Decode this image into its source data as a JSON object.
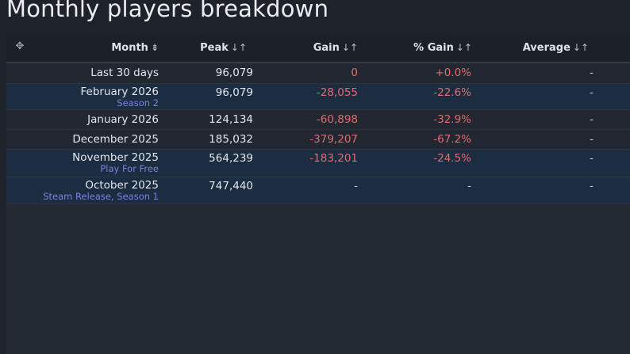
{
  "page": {
    "title": "Monthly players breakdown"
  },
  "table": {
    "headers": {
      "month": "Month",
      "peak": "Peak",
      "gain": "Gain",
      "pct_gain": "% Gain",
      "average": "Average"
    },
    "sort_icons": {
      "month": "⇟",
      "other": "↓↑"
    },
    "rows": [
      {
        "month": "Last 30 days",
        "sub": "",
        "peak": "96,079",
        "gain": "0",
        "pct_gain": "+0.0%",
        "average": "-"
      },
      {
        "month": "February 2026",
        "sub": "Season 2",
        "peak": "96,079",
        "gain": "-28,055",
        "pct_gain": "-22.6%",
        "average": "-"
      },
      {
        "month": "January 2026",
        "sub": "",
        "peak": "124,134",
        "gain": "-60,898",
        "pct_gain": "-32.9%",
        "average": "-"
      },
      {
        "month": "December 2025",
        "sub": "",
        "peak": "185,032",
        "gain": "-379,207",
        "pct_gain": "-67.2%",
        "average": "-"
      },
      {
        "month": "November 2025",
        "sub": "Play For Free",
        "peak": "564,239",
        "gain": "-183,201",
        "pct_gain": "-24.5%",
        "average": "-"
      },
      {
        "month": "October 2025",
        "sub": "Steam Release, Season 1",
        "peak": "747,440",
        "gain": "-",
        "pct_gain": "-",
        "average": "-"
      }
    ]
  },
  "colors": {
    "negative": "#e06c6c",
    "annotation": "#7b82e0",
    "highlight_row": "#1c2c41"
  }
}
